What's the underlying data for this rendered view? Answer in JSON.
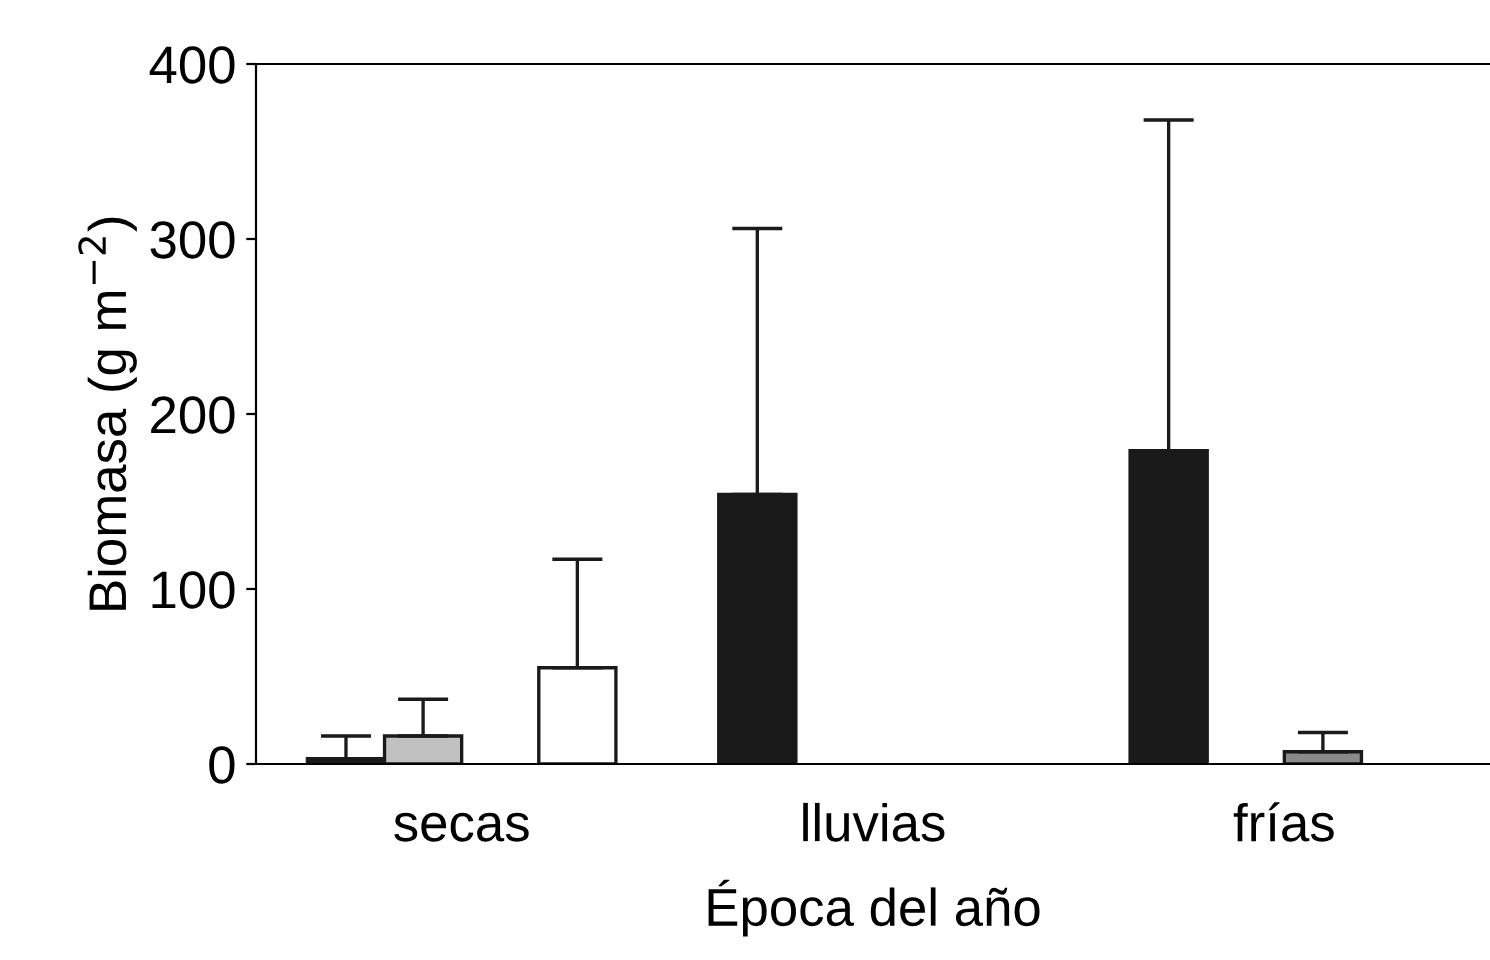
{
  "chart_data": {
    "type": "bar",
    "xlabel": "Época del año",
    "ylabel": "Biomasa (g m$^{−2}$)",
    "categories": [
      "secas",
      "lluvias",
      "frías"
    ],
    "series": [
      {
        "color": "#1a1a1a",
        "values": [
          3,
          154,
          179
        ],
        "errors": [
          [
            3,
            16
          ],
          [
            154,
            306
          ],
          [
            179,
            368
          ]
        ]
      },
      {
        "color": "#c0c0c0",
        "values": [
          16,
          null,
          null
        ],
        "errors": [
          [
            16,
            37
          ],
          null,
          null
        ]
      },
      {
        "color": "#8a8a8a",
        "values": [
          null,
          null,
          7
        ],
        "errors": [
          null,
          null,
          [
            7,
            18
          ]
        ]
      },
      {
        "color": "#ffffff",
        "values": [
          55,
          null,
          null
        ],
        "errors": [
          [
            55,
            117
          ],
          null,
          null
        ]
      }
    ],
    "ylim": [
      0,
      400
    ],
    "yticks": [
      0,
      100,
      200,
      300,
      400
    ],
    "grid": false,
    "legend": false
  }
}
